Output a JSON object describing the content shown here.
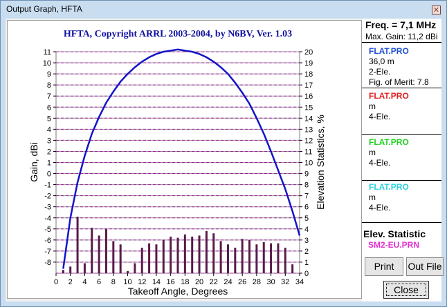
{
  "window": {
    "title": "Output Graph, HFTA"
  },
  "panel": {
    "freq_label": "Freq. = 7,1 MHz",
    "max_gain_label": "Max. Gain: 11,2 dBi",
    "files": [
      {
        "name": "FLAT.PRO",
        "color": "#1f4fd0",
        "line1": "36,0 m",
        "line2": "2-Ele.",
        "line3": "Fig. of Merit:  7.8"
      },
      {
        "name": "FLAT.PRO",
        "color": "#e02020",
        "line1": " m",
        "line2": "4-Ele.",
        "line3": ""
      },
      {
        "name": "FLAT.PRO",
        "color": "#20d020",
        "line1": " m",
        "line2": "4-Ele.",
        "line3": ""
      },
      {
        "name": "FLAT.PRO",
        "color": "#30d0e0",
        "line1": " m",
        "line2": "4-Ele.",
        "line3": ""
      }
    ],
    "elev_label": "Elev. Statistic",
    "elev_file": "SM2-EU.PRN",
    "elev_file_color": "#e030d0"
  },
  "buttons": {
    "print": "Print",
    "out_file": "Out File",
    "close": "Close"
  },
  "chart_data": {
    "type": "line+bar",
    "title": "HFTA, Copyright ARRL 2003-2004, by N6BV, Ver. 1.03",
    "xlabel": "Takeoff Angle, Degrees",
    "ylabel": "Gain, dBi",
    "y2label": "Elevation Statistics, %",
    "xlim": [
      0,
      34
    ],
    "ylim": [
      -9,
      11
    ],
    "y2lim": [
      0,
      20
    ],
    "x_ticks": [
      0,
      2,
      4,
      6,
      8,
      10,
      12,
      14,
      16,
      18,
      20,
      22,
      24,
      26,
      28,
      30,
      32,
      34
    ],
    "y_ticks": [
      -8,
      -7,
      -6,
      -5,
      -4,
      -3,
      -2,
      -1,
      0,
      1,
      2,
      3,
      4,
      5,
      6,
      7,
      8,
      9,
      10,
      11
    ],
    "y2_ticks": [
      0,
      1,
      2,
      3,
      4,
      5,
      6,
      7,
      8,
      9,
      10,
      11,
      12,
      13,
      14,
      15,
      16,
      17,
      18,
      19,
      20
    ],
    "grid": true,
    "series": [
      {
        "color": "#1414c8",
        "x": [
          1,
          2,
          3,
          4,
          5,
          6,
          7,
          8,
          9,
          10,
          11,
          12,
          13,
          14,
          15,
          16,
          17,
          18,
          19,
          20,
          21,
          22,
          23,
          24,
          25,
          26,
          27,
          28,
          29,
          30,
          31,
          32,
          33,
          34
        ],
        "y": [
          -8.6,
          -4.0,
          -0.8,
          1.6,
          3.6,
          5.1,
          6.4,
          7.4,
          8.3,
          9.0,
          9.6,
          10.1,
          10.5,
          10.8,
          11.0,
          11.1,
          11.2,
          11.1,
          11.0,
          10.8,
          10.5,
          10.1,
          9.6,
          9.0,
          8.2,
          7.3,
          6.3,
          5.0,
          3.6,
          2.0,
          0.3,
          -1.4,
          -3.4,
          -5.6
        ]
      }
    ],
    "bars": {
      "name": "SM2-EU.PRN",
      "color": "#5a1a4a",
      "x": [
        1,
        2,
        3,
        4,
        5,
        6,
        7,
        8,
        9,
        10,
        11,
        12,
        13,
        14,
        15,
        16,
        17,
        18,
        19,
        20,
        21,
        22,
        23,
        24,
        25,
        26,
        27,
        28,
        29,
        30,
        31,
        32,
        33
      ],
      "values": [
        0.3,
        0.6,
        5.1,
        0.9,
        4.1,
        3.4,
        4.0,
        2.9,
        2.6,
        0.2,
        0.9,
        2.3,
        2.7,
        2.6,
        3.0,
        3.3,
        3.2,
        3.5,
        3.3,
        3.4,
        3.8,
        3.6,
        2.9,
        2.6,
        2.3,
        3.1,
        3.0,
        2.6,
        2.8,
        2.7,
        2.7,
        2.3,
        0.8
      ]
    }
  }
}
